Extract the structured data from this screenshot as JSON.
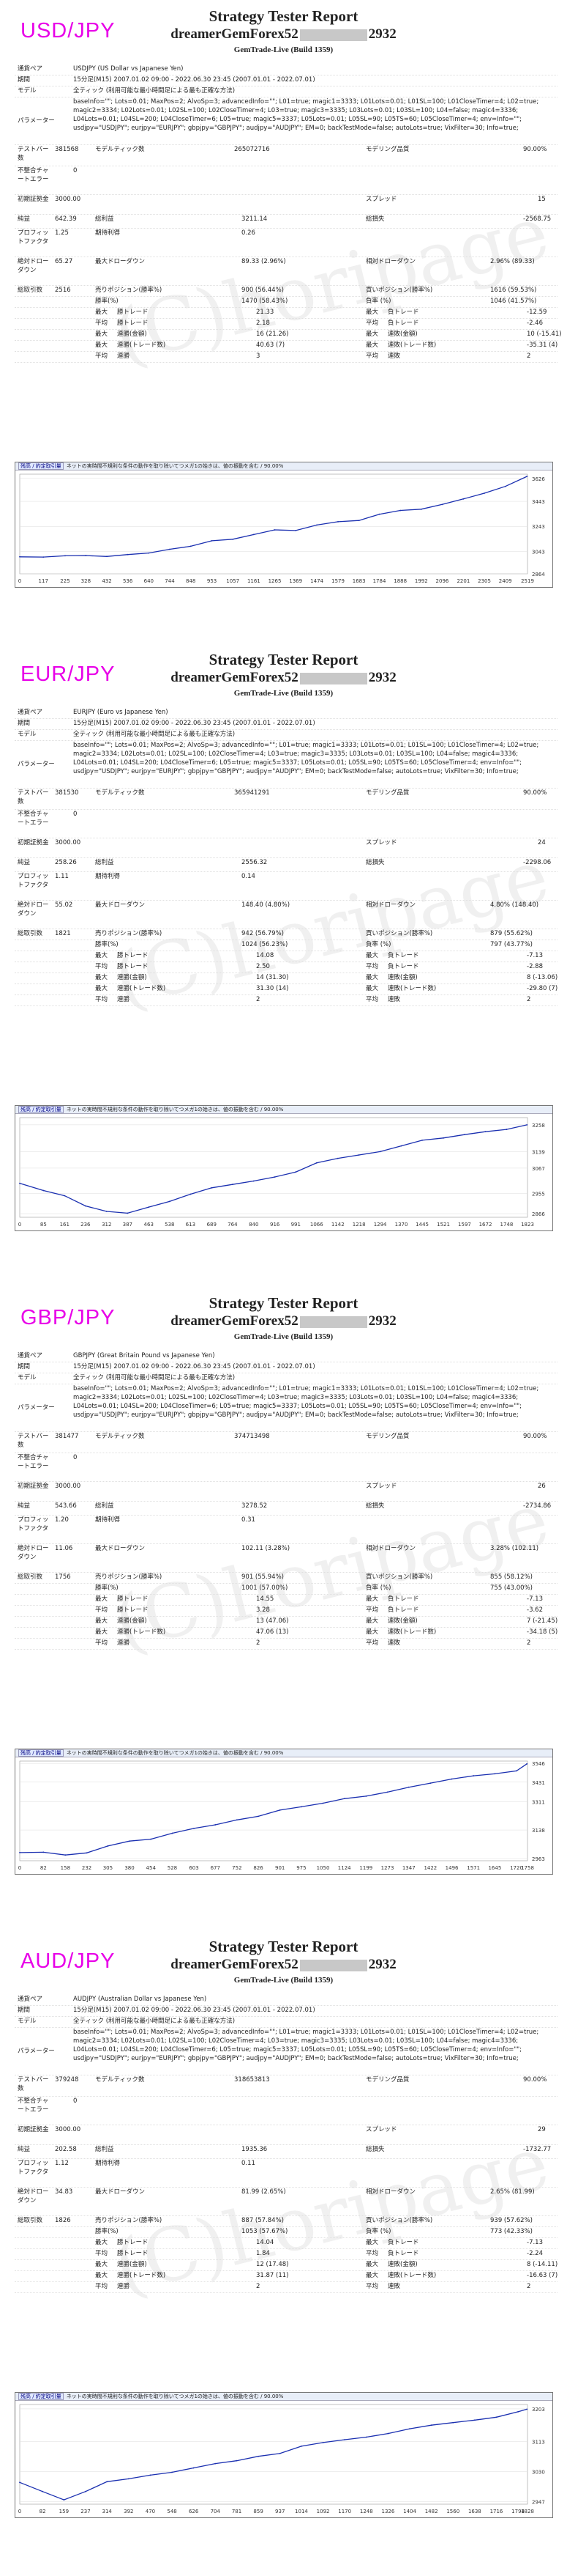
{
  "report_title": "Strategy Tester Report",
  "expert_prefix": "dreamerGemForex52",
  "expert_suffix": "2932",
  "server": "GemTrade-Live (Build 1359)",
  "watermark": "(C)horipage",
  "labels": {
    "symbol": "通貨ペア",
    "period": "期間",
    "model": "モデル",
    "parameters": "パラメーター",
    "bars": "テストバー数",
    "mismatch": "不整合チャートエラー",
    "initial_deposit": "初期証拠金",
    "net_profit": "純益",
    "profit_factor": "プロフィットファクタ",
    "absolute_drawdown": "絶対ドローダウン",
    "total_trades": "総取引数",
    "ticks_modelled": "モデルティック数",
    "modelling_quality": "モデリング品質",
    "spread": "スプレッド",
    "total_profit": "総利益",
    "total_loss": "総損失",
    "expected_payoff": "期待利得",
    "maximal_drawdown": "最大ドローダウン",
    "relative_drawdown": "相対ドローダウン",
    "short_positions": "売りポジション(勝率%)",
    "long_positions": "買いポジション(勝率%)",
    "profit_trades": "勝率(%)",
    "loss_trades": "負率 (%)",
    "largest": "最大",
    "average": "平均",
    "max_consecutive": "最大",
    "avg_consecutive": "平均",
    "profit_trade": "勝トレード",
    "loss_trade": "負トレード",
    "consecutive_wins": "連勝(金額)",
    "consecutive_losses": "連敗(金額)",
    "consecutive_profit": "連勝(トレード数)",
    "consecutive_loss": "連敗(トレード数)",
    "avg_wins": "連勝",
    "avg_losses": "連敗"
  },
  "chart_header": {
    "balance_legend": "残高 / 約定取引量",
    "caption": "ネットの実時間不規則な条件の動作を取り除いてつメガ1の始きは、値の振動を含む / 90.00%"
  },
  "params_text": "baseInfo=\"\"; Lots=0.01; MaxPos=2; AlvoSp=3; advancedInfo=\"\"; L01=true; magic1=3333; L01Lots=0.01; L01SL=100; L01CloseTimer=4; L02=true; magic2=3334; L02Lots=0.01; L02SL=100; L02CloseTimer=4; L03=true; magic3=3335; L03Lots=0.01; L03SL=100; L04=false; magic4=3336; L04Lots=0.01; L04SL=200; L04CloseTimer=6; L05=true; magic5=3337; L05Lots=0.01; L05SL=90; L05TS=60; L05CloseTimer=4; env=Info=\"\"; usdjpy=\"USDJPY\"; eurjpy=\"EURJPY\"; gbpjpy=\"GBPJPY\"; audjpy=\"AUDJPY\"; EM=0; backTestMode=false; autoLots=true; VixFilter=30; Info=true;",
  "reports": [
    {
      "pair": "USD/JPY",
      "symbol": "USDJPY (US Dollar vs Japanese Yen)",
      "period": "15分足(M15) 2007.01.02 09:00 - 2022.06.30 23:45 (2007.01.01 - 2022.07.01)",
      "model": "全ティック (利用可能な最小時間足による最も正確な方法)",
      "bars": "381568",
      "ticks": "265072716",
      "quality": "90.00%",
      "mismatch": "0",
      "initial_deposit": "3000.00",
      "spread": "15",
      "net_profit": "642.39",
      "total_profit": "3211.14",
      "total_loss": "-2568.75",
      "profit_factor": "1.25",
      "expected_payoff": "0.26",
      "absolute_drawdown": "65.27",
      "maximal_drawdown": "89.33 (2.96%)",
      "relative_drawdown": "2.96% (89.33)",
      "total_trades": "2516",
      "short_positions": "900 (56.44%)",
      "long_positions": "1616 (59.53%)",
      "profit_trades": "1470 (58.43%)",
      "loss_trades": "1046 (41.57%)",
      "largest_profit": "21.33",
      "largest_loss": "-12.59",
      "average_profit": "2.18",
      "average_loss": "-2.46",
      "max_consec_wins": "16 (21.26)",
      "max_consec_losses": "10 (-15.41)",
      "max_consec_profit": "40.63 (7)",
      "max_consec_loss": "-35.31 (4)",
      "avg_wins": "3",
      "avg_losses": "2",
      "chart_data": {
        "type": "line",
        "title": "",
        "x": [
          0,
          117,
          225,
          328,
          432,
          536,
          640,
          744,
          848,
          953,
          1057,
          1161,
          1265,
          1369,
          1474,
          1579,
          1683,
          1784,
          1888,
          1992,
          2096,
          2201,
          2305,
          2409,
          2516
        ],
        "y": [
          3000,
          2998,
          3008,
          3010,
          3003,
          3018,
          3030,
          3060,
          3084,
          3128,
          3140,
          3178,
          3215,
          3210,
          3254,
          3280,
          3290,
          3340,
          3370,
          3380,
          3418,
          3462,
          3508,
          3562,
          3642
        ],
        "yticks": [
          2864,
          3043,
          3243,
          3443,
          3626
        ],
        "ylim": [
          2864,
          3660
        ],
        "xticks": [
          0,
          117,
          225,
          328,
          432,
          536,
          640,
          744,
          848,
          953,
          1057,
          1161,
          1265,
          1369,
          1474,
          1579,
          1683,
          1784,
          1888,
          1992,
          2096,
          2201,
          2305,
          2409,
          2519
        ]
      }
    },
    {
      "pair": "EUR/JPY",
      "symbol": "EURJPY (Euro vs Japanese Yen)",
      "period": "15分足(M15) 2007.01.02 09:00 - 2022.06.30 23:45 (2007.01.01 - 2022.07.01)",
      "model": "全ティック (利用可能な最小時間足による最も正確な方法)",
      "bars": "381530",
      "ticks": "365941291",
      "quality": "90.00%",
      "mismatch": "0",
      "initial_deposit": "3000.00",
      "spread": "24",
      "net_profit": "258.26",
      "total_profit": "2556.32",
      "total_loss": "-2298.06",
      "profit_factor": "1.11",
      "expected_payoff": "0.14",
      "absolute_drawdown": "55.02",
      "maximal_drawdown": "148.40 (4.80%)",
      "relative_drawdown": "4.80% (148.40)",
      "total_trades": "1821",
      "short_positions": "942 (56.79%)",
      "long_positions": "879 (55.62%)",
      "profit_trades": "1024 (56.23%)",
      "loss_trades": "797 (43.77%)",
      "largest_profit": "14.08",
      "largest_loss": "-7.13",
      "average_profit": "2.50",
      "average_loss": "-2.88",
      "max_consec_wins": "14 (31.30)",
      "max_consec_losses": "8 (-13.06)",
      "max_consec_profit": "31.30 (14)",
      "max_consec_loss": "-29.80 (7)",
      "avg_wins": "2",
      "avg_losses": "2",
      "chart_data": {
        "type": "line",
        "title": "",
        "x": [
          0,
          85,
          161,
          236,
          312,
          387,
          463,
          538,
          613,
          689,
          764,
          840,
          916,
          991,
          1066,
          1142,
          1218,
          1294,
          1370,
          1445,
          1521,
          1597,
          1672,
          1748,
          1821
        ],
        "y": [
          3000,
          2968,
          2945,
          2900,
          2876,
          2868,
          2895,
          2920,
          2952,
          2980,
          2995,
          3010,
          3028,
          3050,
          3090,
          3110,
          3125,
          3140,
          3165,
          3190,
          3200,
          3215,
          3228,
          3238,
          3258
        ],
        "yticks": [
          2866,
          2955,
          3067,
          3139,
          3258
        ],
        "ylim": [
          2850,
          3290
        ],
        "xticks": [
          0,
          85,
          161,
          236,
          312,
          387,
          463,
          538,
          613,
          689,
          764,
          840,
          916,
          991,
          1066,
          1142,
          1218,
          1294,
          1370,
          1445,
          1521,
          1597,
          1672,
          1748,
          1823
        ]
      }
    },
    {
      "pair": "GBP/JPY",
      "symbol": "GBPJPY (Great Britain Pound vs Japanese Yen)",
      "period": "15分足(M15) 2007.01.02 09:00 - 2022.06.30 23:45 (2007.01.01 - 2022.07.01)",
      "model": "全ティック (利用可能な最小時間足による最も正確な方法)",
      "bars": "381477",
      "ticks": "374713498",
      "quality": "90.00%",
      "mismatch": "0",
      "initial_deposit": "3000.00",
      "spread": "26",
      "net_profit": "543.66",
      "total_profit": "3278.52",
      "total_loss": "-2734.86",
      "profit_factor": "1.20",
      "expected_payoff": "0.31",
      "absolute_drawdown": "11.06",
      "maximal_drawdown": "102.11 (3.28%)",
      "relative_drawdown": "3.28% (102.11)",
      "total_trades": "1756",
      "short_positions": "901 (55.94%)",
      "long_positions": "855 (58.12%)",
      "profit_trades": "1001 (57.00%)",
      "loss_trades": "755 (43.00%)",
      "largest_profit": "14.55",
      "largest_loss": "-7.13",
      "average_profit": "3.28",
      "average_loss": "-3.62",
      "max_consec_wins": "13 (47.06)",
      "max_consec_losses": "7 (-21.45)",
      "max_consec_profit": "47.06 (13)",
      "max_consec_loss": "-34.18 (5)",
      "avg_wins": "2",
      "avg_losses": "2",
      "chart_data": {
        "type": "line",
        "title": "",
        "x": [
          0,
          82,
          158,
          232,
          305,
          380,
          454,
          528,
          603,
          677,
          752,
          826,
          901,
          975,
          1050,
          1124,
          1199,
          1273,
          1347,
          1422,
          1496,
          1571,
          1645,
          1720,
          1756
        ],
        "y": [
          3000,
          3002,
          2985,
          2998,
          3040,
          3070,
          3082,
          3118,
          3148,
          3170,
          3200,
          3222,
          3260,
          3280,
          3302,
          3330,
          3345,
          3370,
          3400,
          3425,
          3450,
          3470,
          3482,
          3500,
          3543
        ],
        "yticks": [
          2963,
          3138,
          3311,
          3431,
          3546
        ],
        "ylim": [
          2950,
          3560
        ],
        "xticks": [
          0,
          82,
          158,
          232,
          305,
          380,
          454,
          528,
          603,
          677,
          752,
          826,
          901,
          975,
          1050,
          1124,
          1199,
          1273,
          1347,
          1422,
          1496,
          1571,
          1645,
          1720,
          1758
        ]
      }
    },
    {
      "pair": "AUD/JPY",
      "symbol": "AUDJPY (Australian Dollar vs Japanese Yen)",
      "period": "15分足(M15) 2007.01.02 09:00 - 2022.06.30 23:45 (2007.01.01 - 2022.07.01)",
      "model": "全ティック (利用可能な最小時間足による最も正確な方法)",
      "bars": "379248",
      "ticks": "318653813",
      "quality": "90.00%",
      "mismatch": "0",
      "initial_deposit": "3000.00",
      "spread": "29",
      "net_profit": "202.58",
      "total_profit": "1935.36",
      "total_loss": "-1732.77",
      "profit_factor": "1.12",
      "expected_payoff": "0.11",
      "absolute_drawdown": "34.83",
      "maximal_drawdown": "81.99 (2.65%)",
      "relative_drawdown": "2.65% (81.99)",
      "total_trades": "1826",
      "short_positions": "887 (57.84%)",
      "long_positions": "939 (57.62%)",
      "profit_trades": "1053 (57.67%)",
      "loss_trades": "773 (42.33%)",
      "largest_profit": "14.04",
      "largest_loss": "-7.13",
      "average_profit": "1.84",
      "average_loss": "-2.24",
      "max_consec_wins": "12 (17.48)",
      "max_consec_losses": "8 (-14.11)",
      "max_consec_profit": "31.87 (11)",
      "max_consec_loss": "-16.63 (7)",
      "avg_wins": "2",
      "avg_losses": "2",
      "chart_data": {
        "type": "line",
        "title": "",
        "x": [
          0,
          82,
          159,
          237,
          314,
          392,
          470,
          548,
          626,
          704,
          781,
          859,
          937,
          1014,
          1092,
          1170,
          1248,
          1326,
          1404,
          1482,
          1560,
          1638,
          1716,
          1794,
          1826
        ],
        "y": [
          3000,
          2975,
          2952,
          2975,
          3002,
          3010,
          3020,
          3028,
          3040,
          3052,
          3060,
          3072,
          3080,
          3100,
          3110,
          3118,
          3125,
          3135,
          3148,
          3158,
          3165,
          3172,
          3180,
          3195,
          3202
        ],
        "yticks": [
          2947,
          3030,
          3113,
          3203
        ],
        "ylim": [
          2940,
          3215
        ],
        "xticks": [
          0,
          82,
          159,
          237,
          314,
          392,
          470,
          548,
          626,
          704,
          781,
          859,
          937,
          1014,
          1092,
          1170,
          1248,
          1326,
          1404,
          1482,
          1560,
          1638,
          1716,
          1794,
          1828
        ]
      }
    }
  ]
}
